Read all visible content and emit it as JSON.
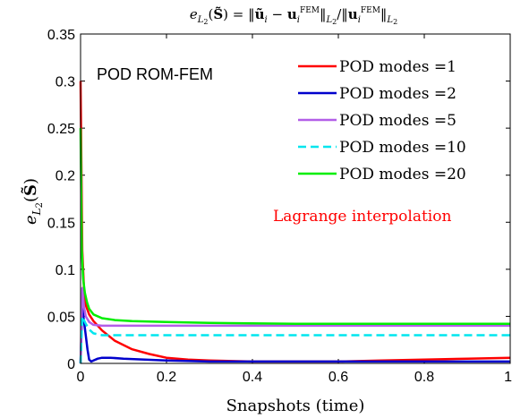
{
  "chart_data": {
    "type": "line",
    "title": "e_{L2}(S̃) = ‖ũ_i − u_i^FEM‖_{L2} / ‖u_i^FEM‖_{L2}",
    "xlabel": "Snapshots (time)",
    "ylabel": "e_{L2}(S̃)",
    "xlim": [
      0,
      1
    ],
    "ylim": [
      0,
      0.35
    ],
    "xticks": [
      0,
      0.2,
      0.4,
      0.6,
      0.8,
      1
    ],
    "xtick_labels": [
      "0",
      "0.2",
      "0.4",
      "0.6",
      "0.8",
      "1"
    ],
    "yticks": [
      0,
      0.05,
      0.1,
      0.15,
      0.2,
      0.25,
      0.3,
      0.35
    ],
    "ytick_labels": [
      "0",
      "0.05",
      "0.1",
      "0.15",
      "0.2",
      "0.25",
      "0.3",
      "0.35"
    ],
    "legend_position": "top-right",
    "annotations": [
      {
        "text": "POD ROM-FEM",
        "color": "#000000"
      },
      {
        "text": "Lagrange interpolation",
        "color": "#ff0000"
      }
    ],
    "series": [
      {
        "name": "POD modes =1",
        "color": "#ff0000",
        "style": "solid",
        "x": [
          0,
          0.004,
          0.008,
          0.012,
          0.02,
          0.03,
          0.05,
          0.08,
          0.12,
          0.16,
          0.2,
          0.25,
          0.3,
          0.4,
          0.5,
          0.6,
          0.7,
          0.8,
          0.9,
          1.0
        ],
        "y": [
          0.3,
          0.12,
          0.08,
          0.062,
          0.052,
          0.045,
          0.035,
          0.024,
          0.015,
          0.01,
          0.006,
          0.004,
          0.003,
          0.002,
          0.002,
          0.002,
          0.003,
          0.004,
          0.005,
          0.006
        ]
      },
      {
        "name": "POD modes =2",
        "color": "#0000cc",
        "style": "solid",
        "x": [
          0,
          0.004,
          0.008,
          0.012,
          0.016,
          0.02,
          0.025,
          0.03,
          0.04,
          0.05,
          0.07,
          0.1,
          0.15,
          0.2,
          0.3,
          0.4,
          0.5,
          0.6,
          0.7,
          0.8,
          0.9,
          1.0
        ],
        "y": [
          0.0,
          0.06,
          0.045,
          0.03,
          0.015,
          0.004,
          0.002,
          0.003,
          0.005,
          0.006,
          0.006,
          0.005,
          0.004,
          0.003,
          0.002,
          0.002,
          0.002,
          0.002,
          0.002,
          0.002,
          0.002,
          0.002
        ]
      },
      {
        "name": "POD modes =5",
        "color": "#b35ee8",
        "style": "solid",
        "x": [
          0,
          0.004,
          0.008,
          0.012,
          0.02,
          0.03,
          0.05,
          0.08,
          0.1,
          0.2,
          0.3,
          0.5,
          0.7,
          1.0
        ],
        "y": [
          0.0,
          0.08,
          0.06,
          0.05,
          0.044,
          0.041,
          0.04,
          0.04,
          0.04,
          0.04,
          0.04,
          0.04,
          0.04,
          0.04
        ]
      },
      {
        "name": "POD modes =10",
        "color": "#00e5ee",
        "style": "dashed",
        "x": [
          0,
          0.004,
          0.008,
          0.012,
          0.02,
          0.03,
          0.05,
          0.1,
          0.2,
          0.4,
          0.6,
          0.8,
          1.0
        ],
        "y": [
          0.0,
          0.05,
          0.046,
          0.042,
          0.036,
          0.032,
          0.03,
          0.03,
          0.03,
          0.03,
          0.03,
          0.03,
          0.03
        ]
      },
      {
        "name": "POD modes =20",
        "color": "#00ee00",
        "style": "solid",
        "x": [
          0,
          0.003,
          0.006,
          0.01,
          0.015,
          0.02,
          0.03,
          0.05,
          0.08,
          0.12,
          0.2,
          0.3,
          0.5,
          0.7,
          1.0
        ],
        "y": [
          0.25,
          0.12,
          0.09,
          0.075,
          0.065,
          0.058,
          0.052,
          0.048,
          0.046,
          0.045,
          0.044,
          0.043,
          0.042,
          0.042,
          0.042
        ]
      }
    ]
  }
}
